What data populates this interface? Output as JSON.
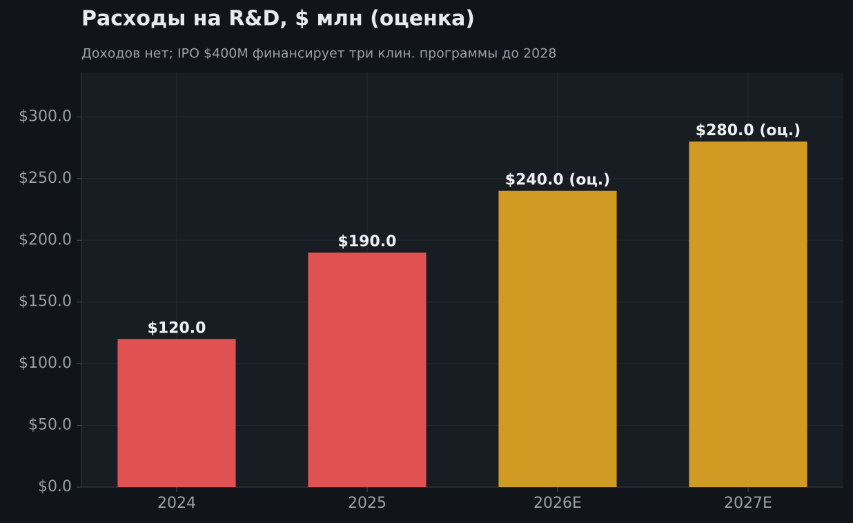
{
  "chart_data": {
    "type": "bar",
    "title": "Расходы на R&D, $ млн (оценка)",
    "subtitle": "Доходов нет; IPO $400M финансирует три клин. программы до 2028",
    "categories": [
      "2024",
      "2025",
      "2026E",
      "2027E"
    ],
    "values": [
      120,
      190,
      240,
      280
    ],
    "value_labels": [
      "$120.0",
      "$190.0",
      "$240.0 (оц.)",
      "$280.0 (оц.)"
    ],
    "colors": [
      "#e05252",
      "#e05252",
      "#d19a23",
      "#d19a23"
    ],
    "ylim": [
      0,
      336
    ],
    "yticks": [
      {
        "value": 0,
        "label": "$0.0"
      },
      {
        "value": 50,
        "label": "$50.0"
      },
      {
        "value": 100,
        "label": "$100.0"
      },
      {
        "value": 150,
        "label": "$150.0"
      },
      {
        "value": 200,
        "label": "$200.0"
      },
      {
        "value": 250,
        "label": "$250.0"
      },
      {
        "value": 300,
        "label": "$300.0"
      }
    ],
    "grid": true
  }
}
